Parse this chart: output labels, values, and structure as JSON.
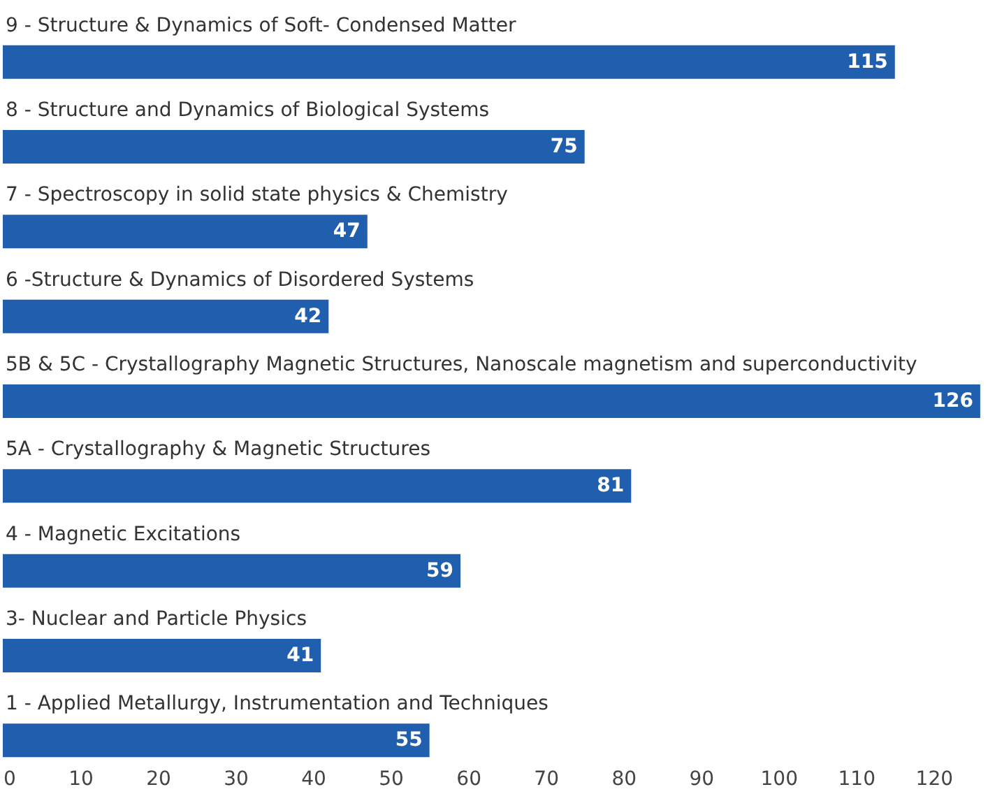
{
  "chart_data": {
    "type": "bar",
    "orientation": "horizontal",
    "categories": [
      "9 - Structure & Dynamics of Soft- Condensed Matter",
      "8 - Structure and Dynamics of Biological Systems",
      "7 - Spectroscopy in solid state physics & Chemistry",
      "6 -Structure & Dynamics of Disordered Systems",
      "5B & 5C - Crystallography Magnetic Structures, Nanoscale magnetism and superconductivity",
      "5A - Crystallography & Magnetic Structures",
      "4 - Magnetic Excitations",
      "3- Nuclear and Particle Physics",
      "1 - Applied Metallurgy, Instrumentation and Techniques"
    ],
    "values": [
      115,
      75,
      47,
      42,
      126,
      81,
      59,
      41,
      55
    ],
    "color": "#1f5fad",
    "xlim": [
      0,
      127
    ],
    "xticks": [
      0,
      10,
      20,
      30,
      40,
      50,
      60,
      70,
      80,
      90,
      100,
      110,
      120
    ],
    "data_labels": true
  }
}
